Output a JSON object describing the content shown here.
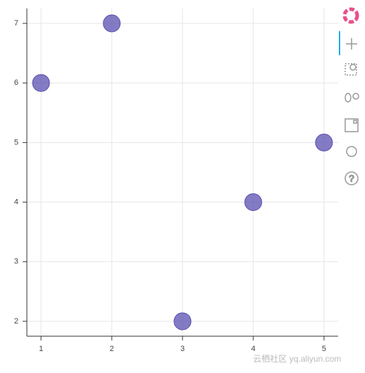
{
  "chart_data": {
    "type": "scatter",
    "x": [
      1,
      2,
      3,
      4,
      5
    ],
    "values": [
      6,
      7,
      2,
      4,
      5
    ],
    "color": "#5a4fb0",
    "xlim": [
      0.8,
      5.2
    ],
    "xticks": [
      1,
      2,
      3,
      4,
      5
    ],
    "ylim": [
      1.75,
      7.25
    ],
    "yticks": [
      2,
      3,
      4,
      5,
      6,
      7
    ],
    "grid": true,
    "watermark": "云栖社区 yq.aliyun.com"
  }
}
